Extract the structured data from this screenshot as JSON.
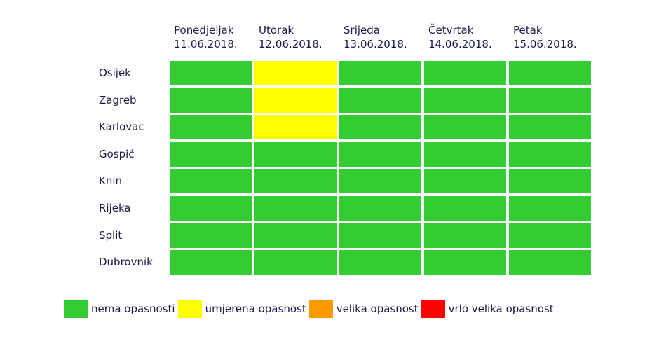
{
  "chart_data": {
    "type": "heatmap",
    "days": [
      {
        "name": "Ponedjeljak",
        "date": "11.06.2018."
      },
      {
        "name": "Utorak",
        "date": "12.06.2018."
      },
      {
        "name": "Srijeda",
        "date": "13.06.2018."
      },
      {
        "name": "Četvrtak",
        "date": "14.06.2018."
      },
      {
        "name": "Petak",
        "date": "15.06.2018."
      }
    ],
    "cities": [
      "Osijek",
      "Zagreb",
      "Karlovac",
      "Gospić",
      "Knin",
      "Rijeka",
      "Split",
      "Dubrovnik"
    ],
    "levels": [
      {
        "key": "nema",
        "label": "nema opasnosti",
        "color": "#33cc33"
      },
      {
        "key": "umjerena",
        "label": "umjerena opasnost",
        "color": "#ffff00"
      },
      {
        "key": "velika",
        "label": "velika opasnost",
        "color": "#ff9900"
      },
      {
        "key": "vrlo",
        "label": "vrlo velika opasnost",
        "color": "#ff0000"
      }
    ],
    "values": [
      [
        "nema",
        "umjerena",
        "nema",
        "nema",
        "nema"
      ],
      [
        "nema",
        "umjerena",
        "nema",
        "nema",
        "nema"
      ],
      [
        "nema",
        "umjerena",
        "nema",
        "nema",
        "nema"
      ],
      [
        "nema",
        "nema",
        "nema",
        "nema",
        "nema"
      ],
      [
        "nema",
        "nema",
        "nema",
        "nema",
        "nema"
      ],
      [
        "nema",
        "nema",
        "nema",
        "nema",
        "nema"
      ],
      [
        "nema",
        "nema",
        "nema",
        "nema",
        "nema"
      ],
      [
        "nema",
        "nema",
        "nema",
        "nema",
        "nema"
      ]
    ]
  }
}
